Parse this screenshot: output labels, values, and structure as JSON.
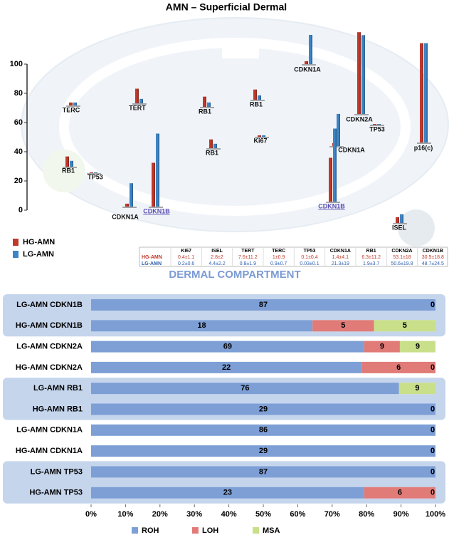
{
  "chart_data": [
    {
      "type": "bar",
      "title": "AMN – Superficial Dermal",
      "categories": [
        "TERC",
        "TERT",
        "RB1",
        "RB1",
        "Ki67",
        "RB1",
        "RB1",
        "TP53",
        "CDKN1A",
        "CDKN1B",
        "CDKN1A",
        "CDKN2A",
        "TP53",
        "CDKN1A",
        "CDKN1B",
        "p16(c)",
        "ISEL"
      ],
      "series": [
        {
          "name": "HG-AMN",
          "color": "#c0392b",
          "values": [
            2,
            10,
            7,
            7,
            1,
            6,
            7,
            0.5,
            2,
            30,
            2,
            56,
            0.5,
            2,
            30,
            68,
            4
          ]
        },
        {
          "name": "LG-AMN",
          "color": "#3d85c6",
          "values": [
            2,
            3,
            3,
            3,
            1,
            3,
            4,
            0.5,
            16,
            50,
            20,
            54,
            0.5,
            22,
            50,
            68,
            6
          ]
        }
      ],
      "ylim": [
        0,
        100
      ],
      "yticks": [
        0,
        20,
        40,
        60,
        80,
        100
      ]
    },
    {
      "type": "barh",
      "stacking": "percent",
      "title": "DERMAL COMPARTMENT",
      "categories": [
        "LG-AMN CDKN1B",
        "HG-AMN CDKN1B",
        "LG-AMN CDKN2A",
        "HG-AMN CDKN2A",
        "LG-AMN RB1",
        "HG-AMN RB1",
        "LG-AMN CDKN1A",
        "HG-AMN CDKN1A",
        "LG-AMN TP53",
        "HG-AMN TP53"
      ],
      "series": [
        {
          "name": "ROH",
          "color": "#7d9fd6",
          "values": [
            87,
            18,
            69,
            22,
            76,
            29,
            86,
            29,
            87,
            23
          ]
        },
        {
          "name": "LOH",
          "color": "#e07b78",
          "values": [
            0,
            5,
            9,
            6,
            0,
            0,
            0,
            0,
            0,
            6
          ]
        },
        {
          "name": "MSA",
          "color": "#c9df8a",
          "values": [
            0,
            5,
            9,
            0,
            9,
            0,
            0,
            0,
            0,
            0
          ]
        }
      ],
      "xlim": [
        0,
        100
      ],
      "xticks": [
        {
          "value": 0,
          "label": "0%"
        },
        {
          "value": 10,
          "label": "10%"
        },
        {
          "value": 20,
          "label": "20%"
        },
        {
          "value": 30,
          "label": "30%"
        },
        {
          "value": 40,
          "label": "40%"
        },
        {
          "value": 50,
          "label": "50%"
        },
        {
          "value": 60,
          "label": "60%"
        },
        {
          "value": 70,
          "label": "70%"
        },
        {
          "value": 80,
          "label": "80%"
        },
        {
          "value": 90,
          "label": "90%"
        },
        {
          "value": 100,
          "label": "100%"
        }
      ]
    }
  ],
  "table": {
    "header": [
      "KI67",
      "ISEL",
      "TERT",
      "TERC",
      "TP53",
      "CDKN1A",
      "RB1",
      "CDKN2A",
      "CDKN1B"
    ],
    "rows": [
      {
        "label": "HG-AMN",
        "cells": [
          "0.4±1.1",
          "2.8±2",
          "7.6±11.2",
          "1±0.9",
          "0.1±0.4",
          "1.4±4.1",
          "6.3±11.2",
          "53.1±18",
          "30.5±18.8"
        ]
      },
      {
        "label": "LG-AMN",
        "cells": [
          "0.2±0.6",
          "4.4±2.2",
          "0.8±1.9",
          "0.9±0.7",
          "0.03±0.1",
          "21.3±19",
          "1.9±3.7",
          "50.6±19.8",
          "48.7±24.5"
        ]
      }
    ]
  }
}
